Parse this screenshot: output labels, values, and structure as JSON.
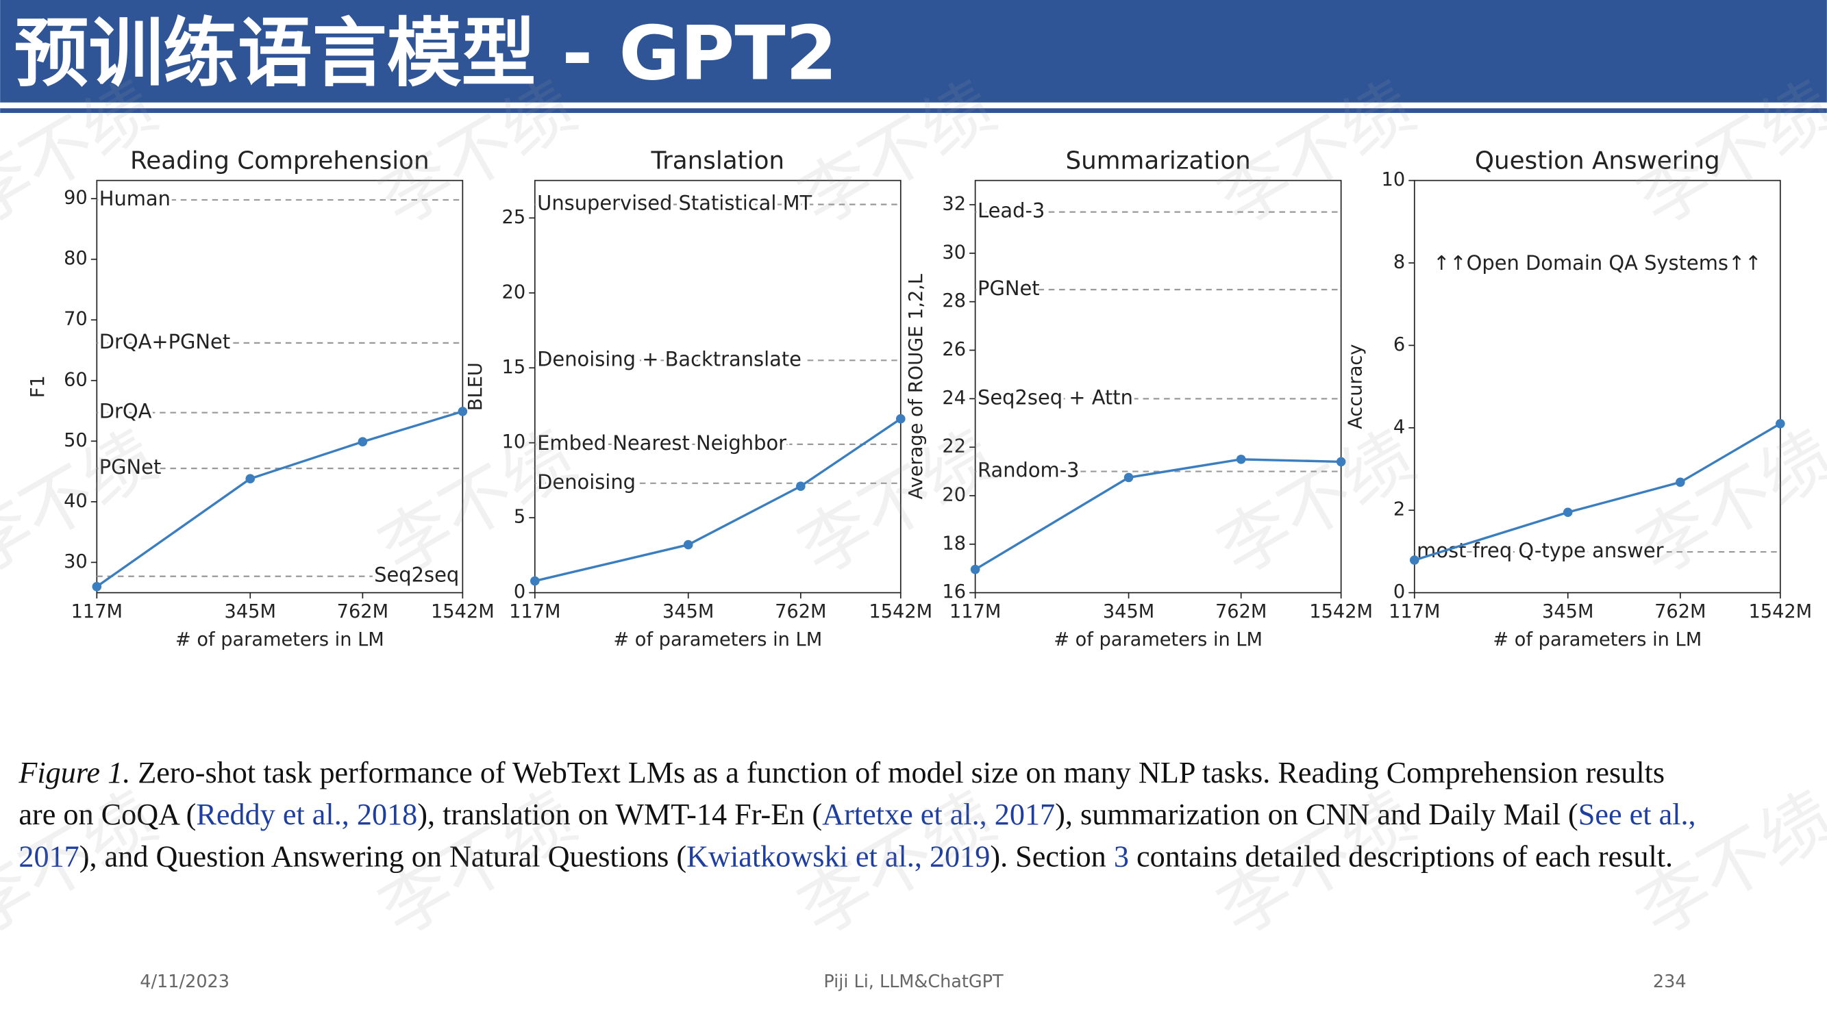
{
  "header": {
    "title": "预训练语言模型 - GPT2"
  },
  "watermark": "李不绩",
  "chart_data": [
    {
      "type": "line",
      "title": "Reading Comprehension",
      "xlabel": "# of parameters in LM",
      "ylabel": "F1",
      "xscale": "log",
      "x": [
        117,
        345,
        762,
        1542
      ],
      "xlim": [
        117,
        1542
      ],
      "xticks": [
        {
          "value": 117,
          "label": "117M"
        },
        {
          "value": 345,
          "label": "345M"
        },
        {
          "value": 762,
          "label": "762M"
        },
        {
          "value": 1542,
          "label": "1542M"
        }
      ],
      "ylim": [
        25,
        93
      ],
      "yticks": [
        30,
        40,
        50,
        60,
        70,
        80,
        90
      ],
      "series": [
        {
          "color": "#3a7ebf",
          "values": [
            26.0,
            43.8,
            49.9,
            54.9
          ]
        }
      ],
      "references": [
        {
          "name": "Human",
          "value": 89.8
        },
        {
          "name": "DrQA+PGNet",
          "value": 66.2
        },
        {
          "name": "DrQA",
          "value": 54.7
        },
        {
          "name": "PGNet",
          "value": 45.5
        },
        {
          "name": "Seq2seq",
          "value": 27.7
        }
      ]
    },
    {
      "type": "line",
      "title": "Translation",
      "xlabel": "# of parameters in LM",
      "ylabel": "BLEU",
      "xscale": "log",
      "x": [
        117,
        345,
        762,
        1542
      ],
      "xlim": [
        117,
        1542
      ],
      "xticks": [
        {
          "value": 117,
          "label": "117M"
        },
        {
          "value": 345,
          "label": "345M"
        },
        {
          "value": 762,
          "label": "762M"
        },
        {
          "value": 1542,
          "label": "1542M"
        }
      ],
      "ylim": [
        0,
        27.5
      ],
      "yticks": [
        0,
        5,
        10,
        15,
        20,
        25
      ],
      "series": [
        {
          "color": "#3a7ebf",
          "values": [
            0.78,
            3.2,
            7.1,
            11.6
          ]
        }
      ],
      "references": [
        {
          "name": "Unsupervised Statistical MT",
          "value": 25.9
        },
        {
          "name": "Denoising + Backtranslate",
          "value": 15.5
        },
        {
          "name": "Embed Nearest Neighbor",
          "value": 9.9
        },
        {
          "name": "Denoising",
          "value": 7.3
        }
      ]
    },
    {
      "type": "line",
      "title": "Summarization",
      "xlabel": "# of parameters in LM",
      "ylabel": "Average of ROUGE 1,2,L",
      "xscale": "log",
      "x": [
        117,
        345,
        762,
        1542
      ],
      "xlim": [
        117,
        1542
      ],
      "xticks": [
        {
          "value": 117,
          "label": "117M"
        },
        {
          "value": 345,
          "label": "345M"
        },
        {
          "value": 762,
          "label": "762M"
        },
        {
          "value": 1542,
          "label": "1542M"
        }
      ],
      "ylim": [
        16,
        33
      ],
      "yticks": [
        16,
        18,
        20,
        22,
        24,
        26,
        28,
        30,
        32
      ],
      "series": [
        {
          "color": "#3a7ebf",
          "values": [
            16.96,
            20.75,
            21.5,
            21.4
          ]
        }
      ],
      "references": [
        {
          "name": "Lead-3",
          "value": 31.7
        },
        {
          "name": "PGNet",
          "value": 28.5
        },
        {
          "name": "Seq2seq + Attn",
          "value": 24.0
        },
        {
          "name": "Random-3",
          "value": 21.0
        }
      ]
    },
    {
      "type": "line",
      "title": "Question Answering",
      "xlabel": "# of parameters in LM",
      "ylabel": "Accuracy",
      "xscale": "log",
      "x": [
        117,
        345,
        762,
        1542
      ],
      "xlim": [
        117,
        1542
      ],
      "xticks": [
        {
          "value": 117,
          "label": "117M"
        },
        {
          "value": 345,
          "label": "345M"
        },
        {
          "value": 762,
          "label": "762M"
        },
        {
          "value": 1542,
          "label": "1542M"
        }
      ],
      "ylim": [
        0,
        10
      ],
      "yticks": [
        0,
        2,
        4,
        6,
        8,
        10
      ],
      "series": [
        {
          "color": "#3a7ebf",
          "values": [
            0.79,
            1.95,
            2.68,
            4.1
          ]
        }
      ],
      "annotation": "↑↑Open Domain QA Systems↑↑",
      "references": [
        {
          "name": "most freq Q-type answer",
          "value": 0.99
        }
      ]
    }
  ],
  "caption": [
    [
      {
        "text": "Figure 1.",
        "italic": true
      },
      {
        "text": " Zero-shot task performance of WebText LMs as a function of model size on many NLP tasks. Reading Comprehension results"
      }
    ],
    [
      {
        "text": "are on CoQA ("
      },
      {
        "text": "Reddy et al., 2018",
        "link": true
      },
      {
        "text": "), translation on WMT-14 Fr-En ("
      },
      {
        "text": "Artetxe et al., 2017",
        "link": true
      },
      {
        "text": "), summarization on CNN and Daily Mail ("
      },
      {
        "text": "See et al.,",
        "link": true
      }
    ],
    [
      {
        "text": "2017",
        "link": true
      },
      {
        "text": "), and Question Answering on Natural Questions ("
      },
      {
        "text": "Kwiatkowski et al., 2019",
        "link": true
      },
      {
        "text": "). Section "
      },
      {
        "text": "3",
        "link": true
      },
      {
        "text": " contains detailed descriptions of each result."
      }
    ]
  ],
  "footer": {
    "date": "4/11/2023",
    "center": "Piji Li, LLM&ChatGPT",
    "page": "234"
  }
}
